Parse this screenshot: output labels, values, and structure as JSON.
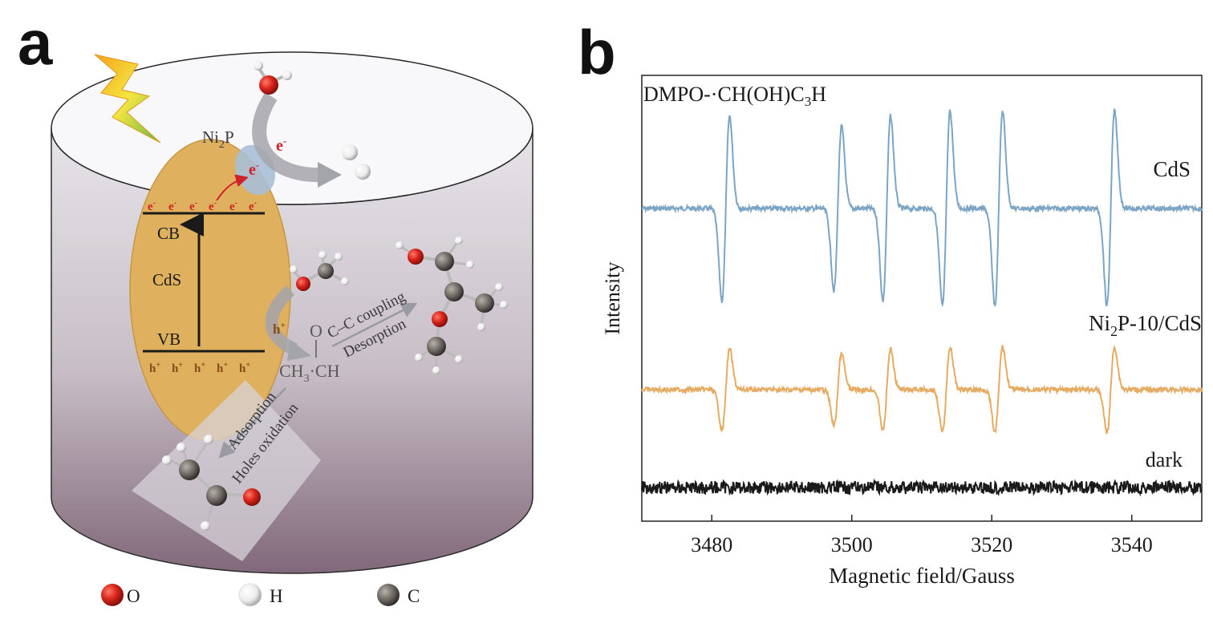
{
  "panel_a": {
    "letter": "a",
    "ni2p": {
      "base": "Ni",
      "sub": "2",
      "tail": "P"
    },
    "electron_arrow_label": {
      "base": "e",
      "sup": "-"
    },
    "electron_small": {
      "base": "e",
      "sup": "-"
    },
    "cb_electron": {
      "base": "e",
      "sup": "-"
    },
    "cb_label": "CB",
    "cds_label": "CdS",
    "vb_label": "VB",
    "vb_hole": {
      "base": "h",
      "sup": "+"
    },
    "hole_arrow_label": {
      "base": "h",
      "sup": "+"
    },
    "intermediate": {
      "left": "CH",
      "sub": "3",
      "right": "CH",
      "dot": "·",
      "o": "O"
    },
    "cc_coupling": "C–C coupling",
    "desorption": "Desorption",
    "adsorption": "Adsorption",
    "holes_oxidation": "Holes oxidation",
    "legend": [
      {
        "label": "O",
        "color": "#d9241b"
      },
      {
        "label": "H",
        "color": "#f2f2f2"
      },
      {
        "label": "C",
        "color": "#6e6863"
      }
    ],
    "colors": {
      "cds_particle": "#dfb05e",
      "ni2p": "#a9bfd6",
      "electron": "#d0202a",
      "hole": "#8a4a1a"
    }
  },
  "panel_b": {
    "letter": "b",
    "annotation": "DMPO-·CH(OH)C",
    "annotation_sub": "3",
    "annotation_tail": "H",
    "series_labels": {
      "cds": "CdS",
      "ni2p_base": "Ni",
      "ni2p_sub": "2",
      "ni2p_tail": "P-10/CdS",
      "dark": "dark"
    },
    "chart_data": {
      "type": "line",
      "xlabel": "Magnetic field/Gauss",
      "ylabel": "Intensity",
      "xlim": [
        3470,
        3550
      ],
      "xticks": [
        3480,
        3500,
        3520,
        3540
      ],
      "y_ticks_shown": false,
      "peak_centers": [
        3482,
        3498,
        3505,
        3513.5,
        3521,
        3537
      ],
      "series": [
        {
          "name": "CdS",
          "color": "#7ca4c4",
          "baseline": 1.0,
          "amplitude": 1.0,
          "peak_relative_amplitudes": [
            0.9,
            0.8,
            0.9,
            0.95,
            0.95,
            0.95
          ]
        },
        {
          "name": "Ni2P-10/CdS",
          "color": "#e6ab63",
          "baseline": 0.0,
          "amplitude": 0.45,
          "peak_relative_amplitudes": [
            0.9,
            0.8,
            0.9,
            0.95,
            0.95,
            0.95
          ]
        },
        {
          "name": "dark",
          "color": "#1a1a1a",
          "baseline": -0.55,
          "amplitude": 0.0,
          "noise_only": true
        }
      ]
    }
  }
}
